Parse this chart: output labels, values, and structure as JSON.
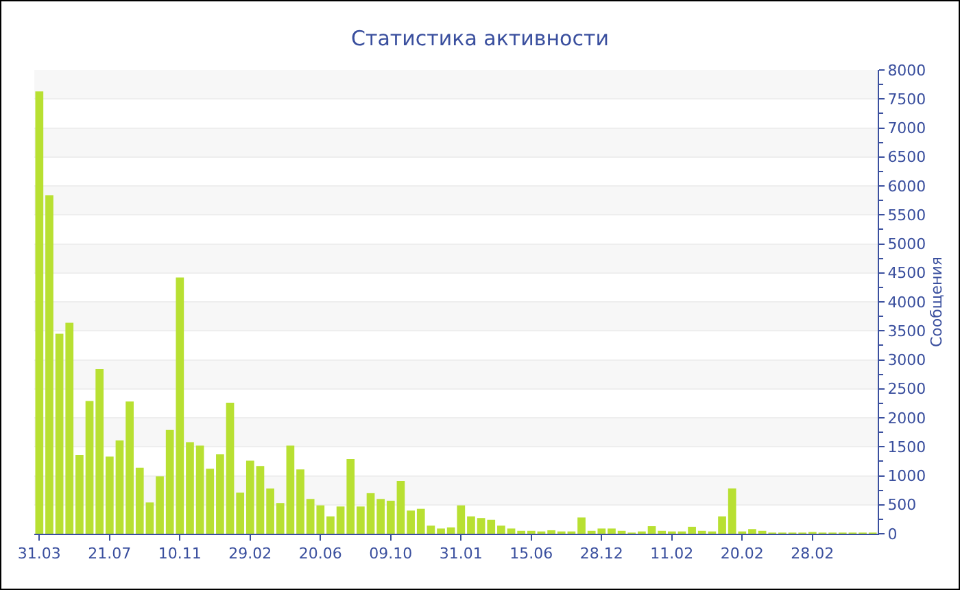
{
  "chart_data": {
    "type": "bar",
    "title": "Статистика активности",
    "ylabel": "Сообщения",
    "categories": [
      "31.03",
      null,
      null,
      null,
      null,
      null,
      null,
      "21.07",
      null,
      null,
      null,
      null,
      null,
      null,
      "10.11",
      null,
      null,
      null,
      null,
      null,
      null,
      "29.02",
      null,
      null,
      null,
      null,
      null,
      null,
      "20.06",
      null,
      null,
      null,
      null,
      null,
      null,
      "09.10",
      null,
      null,
      null,
      null,
      null,
      null,
      "31.01",
      null,
      null,
      null,
      null,
      null,
      null,
      "15.06",
      null,
      null,
      null,
      null,
      null,
      null,
      "28.12",
      null,
      null,
      null,
      null,
      null,
      null,
      "11.02",
      null,
      null,
      null,
      null,
      null,
      null,
      "20.02",
      null,
      null,
      null,
      null,
      null,
      null,
      "28.02",
      null,
      null,
      null,
      null,
      null,
      null
    ],
    "values": [
      7630,
      5840,
      3450,
      3640,
      1360,
      2290,
      2840,
      1330,
      1610,
      2280,
      1140,
      540,
      990,
      1790,
      4420,
      1580,
      1520,
      1120,
      1370,
      2260,
      710,
      1260,
      1170,
      780,
      530,
      1520,
      1110,
      600,
      490,
      300,
      470,
      1290,
      470,
      700,
      600,
      570,
      910,
      400,
      430,
      140,
      90,
      110,
      490,
      300,
      270,
      240,
      140,
      90,
      50,
      50,
      40,
      60,
      40,
      40,
      280,
      50,
      90,
      90,
      50,
      20,
      40,
      130,
      50,
      40,
      40,
      120,
      50,
      40,
      300,
      780,
      40,
      80,
      50,
      20,
      20,
      20,
      20,
      30,
      20,
      20,
      20,
      20,
      20,
      20
    ],
    "color": "#b8e032",
    "ylim": [
      0,
      8000
    ],
    "yticks": [
      0,
      500,
      1000,
      1500,
      2000,
      2500,
      3000,
      3500,
      4000,
      4500,
      5000,
      5500,
      6000,
      6500,
      7000,
      7500,
      8000
    ],
    "grid": true
  }
}
